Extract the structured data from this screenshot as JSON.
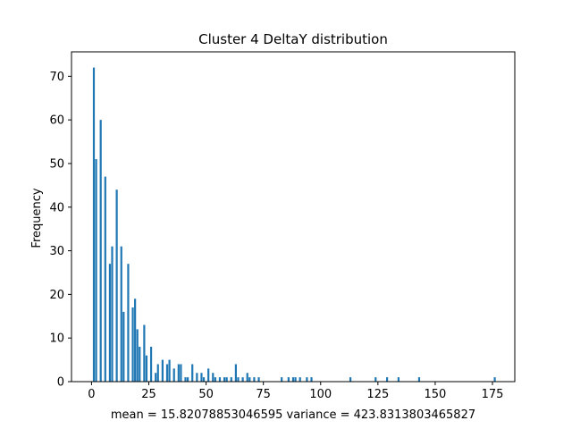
{
  "chart_data": {
    "type": "bar",
    "title": "Cluster 4 DeltaY distribution",
    "xlabel": "mean = 15.82078853046595    variance = 423.8313803465827",
    "ylabel": "Frequency",
    "xlim": [
      -8.75,
      184.75
    ],
    "ylim": [
      0,
      75.6
    ],
    "xticks": [
      0,
      25,
      50,
      75,
      100,
      125,
      150,
      175
    ],
    "yticks": [
      0,
      10,
      20,
      30,
      40,
      50,
      60,
      70
    ],
    "bar_color": "#1f77b4",
    "grid": false,
    "x": [
      1,
      2,
      4,
      6,
      8,
      9,
      11,
      13,
      14,
      16,
      18,
      19,
      20,
      21,
      23,
      24,
      26,
      28,
      29,
      31,
      33,
      34,
      36,
      38,
      39,
      41,
      42,
      44,
      46,
      48,
      49,
      51,
      53,
      54,
      56,
      58,
      59,
      61,
      63,
      64,
      66,
      68,
      69,
      71,
      73,
      83,
      86,
      88,
      89,
      91,
      94,
      96,
      113,
      124,
      129,
      134,
      143,
      176
    ],
    "values": [
      72,
      51,
      60,
      47,
      27,
      31,
      44,
      31,
      16,
      27,
      17,
      19,
      12,
      8,
      13,
      6,
      8,
      2,
      4,
      5,
      4,
      5,
      3,
      4,
      4,
      1,
      1,
      4,
      2,
      2,
      1,
      3,
      2,
      1,
      1,
      1,
      1,
      1,
      4,
      1,
      1,
      2,
      1,
      1,
      1,
      1,
      1,
      1,
      1,
      1,
      1,
      1,
      1,
      1,
      1,
      1,
      1,
      1
    ]
  }
}
